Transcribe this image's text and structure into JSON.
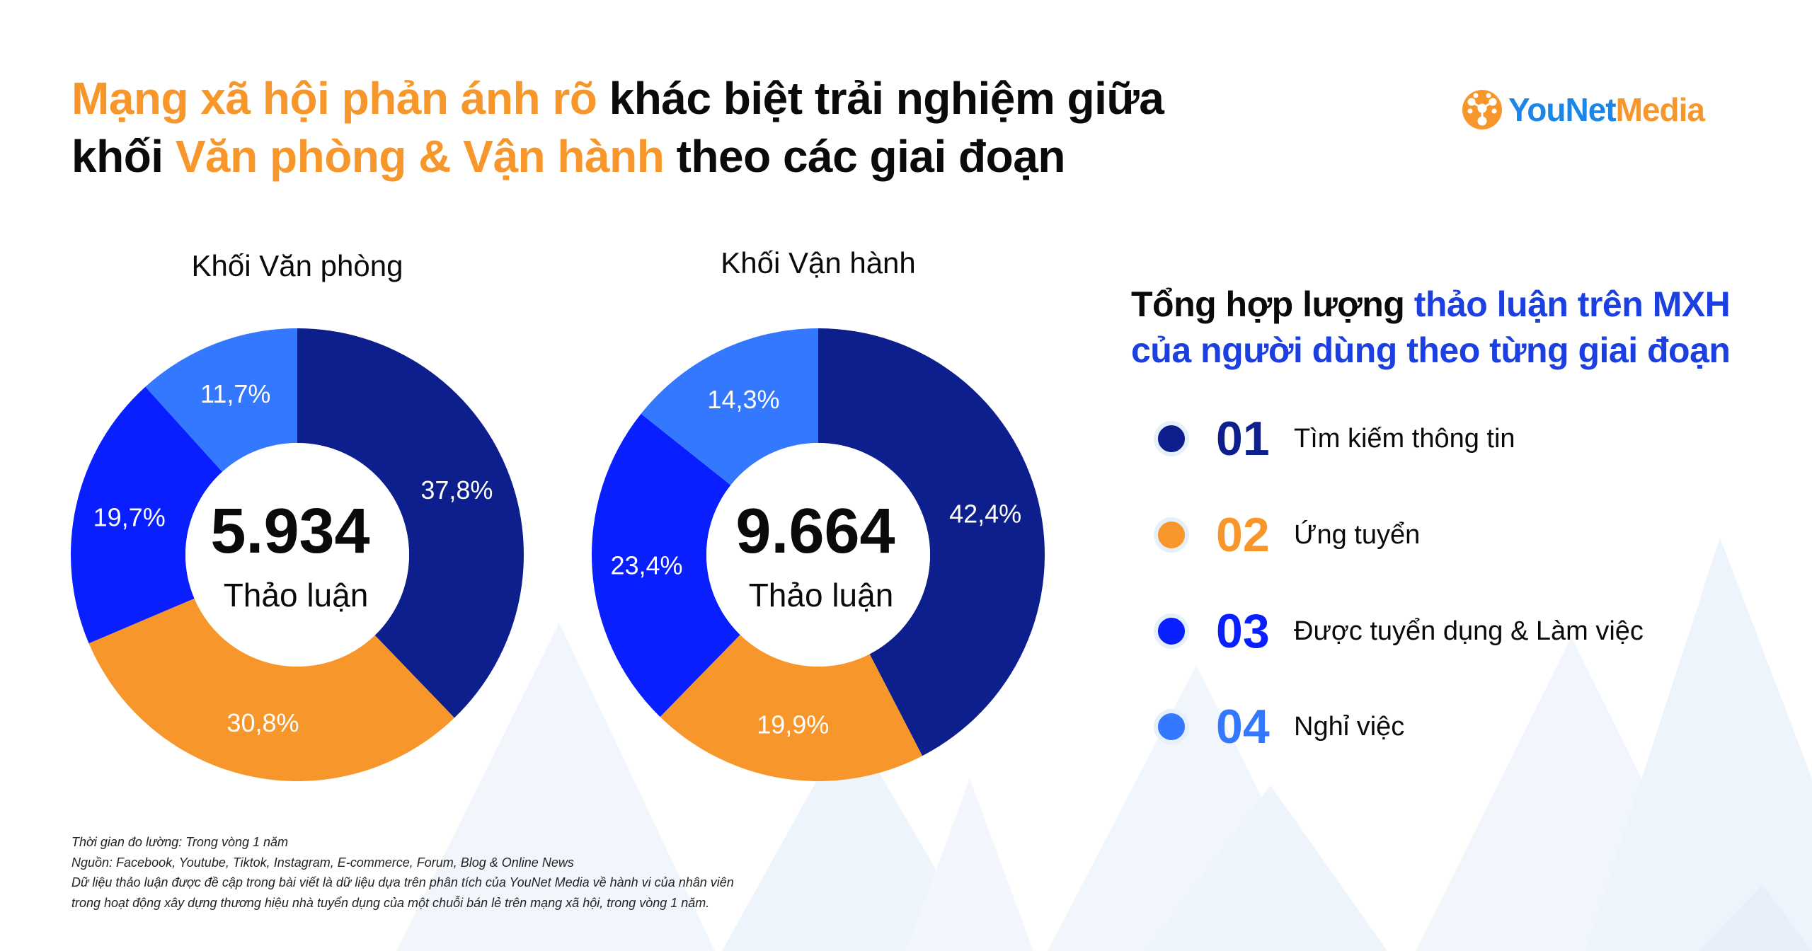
{
  "title": {
    "line1_highlight": "Mạng xã hội phản ánh rõ",
    "line1_rest": " khác biệt trải nghiệm giữa",
    "line2_start": "khối ",
    "line2_highlight": "Văn phòng & Vận hành",
    "line2_rest": " theo các giai đoạn"
  },
  "logo": {
    "you": "YouNet",
    "media": "Media"
  },
  "colors": {
    "stage1": "#0c1f8c",
    "stage2": "#f7962a",
    "stage3": "#0a1fff",
    "stage4": "#3378ff",
    "accent_orange": "#f7962a",
    "accent_blue": "#1b3fe0"
  },
  "chart_data": [
    {
      "type": "pie",
      "title": "Khối Văn phòng",
      "center_value": "5.934",
      "center_label": "Thảo luận",
      "categories": [
        "Tìm kiếm thông tin",
        "Ứng tuyển",
        "Được tuyển dụng & Làm việc",
        "Nghỉ việc"
      ],
      "values": [
        37.8,
        30.8,
        19.7,
        11.7
      ],
      "labels": [
        "37,8%",
        "30,8%",
        "19,7%",
        "11,7%"
      ]
    },
    {
      "type": "pie",
      "title": "Khối Vận hành",
      "center_value": "9.664",
      "center_label": "Thảo luận",
      "categories": [
        "Tìm kiếm thông tin",
        "Ứng tuyển",
        "Được tuyển dụng & Làm việc",
        "Nghỉ việc"
      ],
      "values": [
        42.4,
        19.9,
        23.4,
        14.3
      ],
      "labels": [
        "42,4%",
        "19,9%",
        "23,4%",
        "14,3%"
      ]
    }
  ],
  "summary": {
    "part1": "Tổng hợp lượng ",
    "part2": "thảo luận trên MXH",
    "line2": "của người dùng theo từng giai đoạn"
  },
  "legend": [
    {
      "number": "01",
      "label": "Tìm kiếm thông tin",
      "color": "#0c1f8c"
    },
    {
      "number": "02",
      "label": "Ứng tuyển",
      "color": "#f7962a"
    },
    {
      "number": "03",
      "label": "Được tuyển dụng & Làm việc",
      "color": "#0a1fff"
    },
    {
      "number": "04",
      "label": "Nghỉ việc",
      "color": "#3378ff"
    }
  ],
  "notes": [
    "Thời gian đo lường: Trong vòng 1 năm",
    "Nguồn: Facebook, Youtube, Tiktok, Instagram, E-commerce, Forum, Blog & Online News",
    "Dữ liệu thảo luận được đề cập trong bài viết là dữ liệu dựa trên phân tích của YouNet Media về hành vi của nhân viên",
    "trong hoạt động xây dựng thương hiệu nhà tuyển dụng của một chuỗi bán lẻ trên mạng xã hội, trong vòng 1 năm."
  ]
}
